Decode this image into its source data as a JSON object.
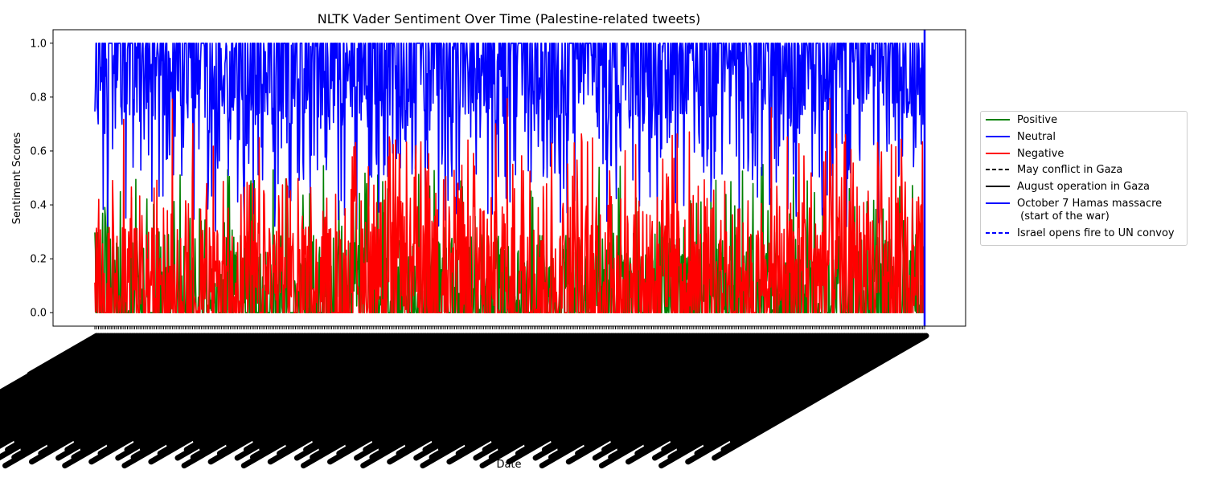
{
  "chart_data": {
    "type": "line",
    "title": "NLTK Vader Sentiment Over Time (Palestine-related tweets)",
    "xlabel": "Date",
    "ylabel": "Sentiment Scores",
    "ylim": [
      -0.05,
      1.05
    ],
    "yticks": [
      "0.0",
      "0.2",
      "0.4",
      "0.6",
      "0.8",
      "1.0"
    ],
    "x_tick_labels": "dense, overlapping and illegible (one per tweet date)",
    "grid": false,
    "legend_position": "outside right",
    "series": [
      {
        "name": "Positive",
        "color": "#008000",
        "style": "solid",
        "typical_range": [
          0.0,
          0.55
        ],
        "summary": "mostly 0.0-0.35, occasional peaks near 0.5"
      },
      {
        "name": "Neutral",
        "color": "#0000ff",
        "style": "solid",
        "typical_range": [
          0.3,
          1.0
        ],
        "summary": "dense band between ~0.5 and 1.0, frequently at 1.0"
      },
      {
        "name": "Negative",
        "color": "#ff0000",
        "style": "solid",
        "typical_range": [
          0.0,
          0.8
        ],
        "summary": "mostly 0.0-0.45, higher activity in middle/late section peaking near 0.8"
      }
    ],
    "event_lines": [
      {
        "name": "May conflict in Gaza",
        "color": "#000000",
        "style": "dashed"
      },
      {
        "name": "August operation in Gaza",
        "color": "#000000",
        "style": "solid"
      },
      {
        "name": "October 7 Hamas massacre\n (start of the war)",
        "color": "#0000ff",
        "style": "solid"
      },
      {
        "name": "Israel opens fire to UN convoy",
        "color": "#0000ff",
        "style": "dashed"
      }
    ]
  },
  "legend": {
    "items": [
      {
        "label": "Positive",
        "color": "#008000",
        "dash": false
      },
      {
        "label": "Neutral",
        "color": "#0000ff",
        "dash": false
      },
      {
        "label": "Negative",
        "color": "#ff0000",
        "dash": false
      },
      {
        "label": "May conflict in Gaza",
        "color": "#000000",
        "dash": true
      },
      {
        "label": "August operation in Gaza",
        "color": "#000000",
        "dash": false
      },
      {
        "label": "October 7 Hamas massacre\n (start of the war)",
        "color": "#0000ff",
        "dash": false
      },
      {
        "label": "Israel opens fire to UN convoy",
        "color": "#0000ff",
        "dash": true
      }
    ]
  }
}
